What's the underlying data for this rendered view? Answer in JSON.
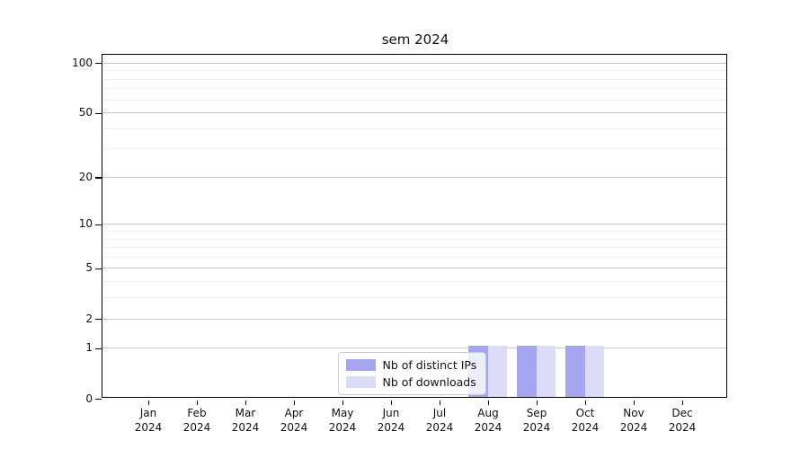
{
  "title": "sem 2024",
  "legend": {
    "items": [
      {
        "label": "Nb of distinct IPs"
      },
      {
        "label": "Nb of downloads"
      }
    ]
  },
  "chart_data": {
    "type": "bar",
    "title": "sem 2024",
    "categories": [
      "Jan 2024",
      "Feb 2024",
      "Mar 2024",
      "Apr 2024",
      "May 2024",
      "Jun 2024",
      "Jul 2024",
      "Aug 2024",
      "Sep 2024",
      "Oct 2024",
      "Nov 2024",
      "Dec 2024"
    ],
    "series": [
      {
        "name": "Nb of distinct IPs",
        "color": "#a6a6f0",
        "values": [
          0,
          0,
          0,
          0,
          0,
          0,
          0,
          1,
          1,
          1,
          0,
          0
        ]
      },
      {
        "name": "Nb of downloads",
        "color": "#dcdcf8",
        "values": [
          0,
          0,
          0,
          0,
          0,
          0,
          0,
          1,
          1,
          1,
          0,
          0
        ]
      }
    ],
    "xlabel": "",
    "ylabel": "",
    "yscale": "log1p",
    "ylim": [
      0,
      112
    ],
    "y_major_ticks": [
      0,
      1,
      2,
      5,
      10,
      20,
      50,
      100
    ],
    "y_minor_ticks": [
      3,
      4,
      6,
      7,
      8,
      9,
      30,
      40,
      60,
      70,
      80,
      90
    ],
    "grid": "horizontal",
    "legend_position": "inside-bottom-center"
  },
  "colors": {
    "major_grid": "#c9c9c9",
    "minor_grid": "#eeeeee",
    "axis": "#000000",
    "text": "#111111",
    "legend_border": "#cccccc"
  }
}
